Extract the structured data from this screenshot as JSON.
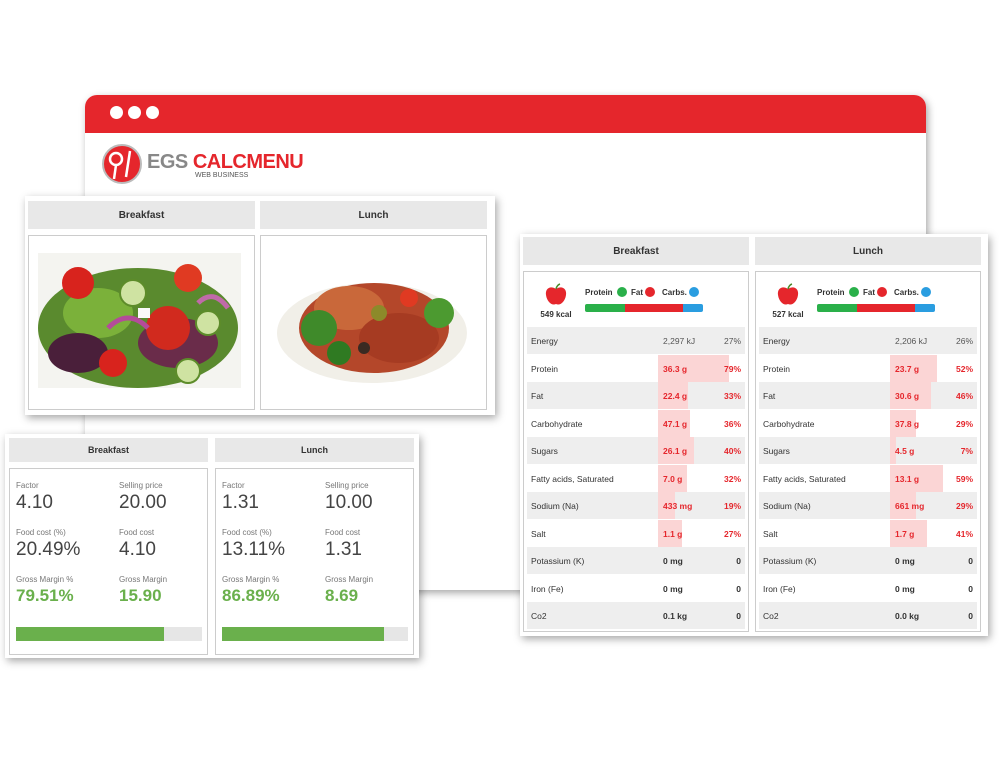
{
  "logo": {
    "brand_grey": "EGS",
    "brand_red": "CALCMENU",
    "tagline": "WEB BUSINESS"
  },
  "photos": [
    {
      "title": "Breakfast"
    },
    {
      "title": "Lunch"
    }
  ],
  "costs": [
    {
      "title": "Breakfast",
      "fields": [
        {
          "label": "Factor",
          "value": "4.10"
        },
        {
          "label": "Selling price",
          "value": "20.00"
        },
        {
          "label": "Food cost (%)",
          "value": "20.49%"
        },
        {
          "label": "Food cost",
          "value": "4.10"
        },
        {
          "label": "Gross Margin %",
          "value": "79.51%"
        },
        {
          "label": "Gross Margin",
          "value": "15.90"
        }
      ]
    },
    {
      "title": "Lunch",
      "fields": [
        {
          "label": "Factor",
          "value": "1.31"
        },
        {
          "label": "Selling price",
          "value": "10.00"
        },
        {
          "label": "Food cost (%)",
          "value": "13.11%"
        },
        {
          "label": "Food cost",
          "value": "1.31"
        },
        {
          "label": "Gross Margin %",
          "value": "86.89%"
        },
        {
          "label": "Gross Margin",
          "value": "8.69"
        }
      ]
    }
  ],
  "nutrition": [
    {
      "title": "Breakfast",
      "kcal": "549 kcal",
      "legend": [
        "Protein",
        "Fat",
        "Carbs."
      ],
      "rows": [
        {
          "name": "Energy",
          "value": "2,297 kJ",
          "pct": "27%"
        },
        {
          "name": "Protein",
          "value": "36.3 g",
          "pct": "79%",
          "highlight": true
        },
        {
          "name": "Fat",
          "value": "22.4 g",
          "pct": "33%",
          "highlight": true
        },
        {
          "name": "Carbohydrate",
          "value": "47.1 g",
          "pct": "36%",
          "highlight": true
        },
        {
          "name": "Sugars",
          "value": "26.1 g",
          "pct": "40%",
          "highlight": true
        },
        {
          "name": "Fatty acids, Saturated",
          "value": "7.0 g",
          "pct": "32%",
          "highlight": true
        },
        {
          "name": "Sodium (Na)",
          "value": "433 mg",
          "pct": "19%",
          "highlight": true
        },
        {
          "name": "Salt",
          "value": "1.1 g",
          "pct": "27%",
          "highlight": true
        },
        {
          "name": "Potassium (K)",
          "value": "0 mg",
          "pct": "0"
        },
        {
          "name": "Iron (Fe)",
          "value": "0 mg",
          "pct": "0"
        },
        {
          "name": "Co2",
          "value": "0.1 kg",
          "pct": "0"
        }
      ]
    },
    {
      "title": "Lunch",
      "kcal": "527 kcal",
      "legend": [
        "Protein",
        "Fat",
        "Carbs."
      ],
      "rows": [
        {
          "name": "Energy",
          "value": "2,206 kJ",
          "pct": "26%"
        },
        {
          "name": "Protein",
          "value": "23.7 g",
          "pct": "52%",
          "highlight": true
        },
        {
          "name": "Fat",
          "value": "30.6 g",
          "pct": "46%",
          "highlight": true
        },
        {
          "name": "Carbohydrate",
          "value": "37.8 g",
          "pct": "29%",
          "highlight": true
        },
        {
          "name": "Sugars",
          "value": "4.5 g",
          "pct": "7%",
          "highlight": true
        },
        {
          "name": "Fatty acids, Saturated",
          "value": "13.1 g",
          "pct": "59%",
          "highlight": true
        },
        {
          "name": "Sodium (Na)",
          "value": "661 mg",
          "pct": "29%",
          "highlight": true
        },
        {
          "name": "Salt",
          "value": "1.7 g",
          "pct": "41%",
          "highlight": true
        },
        {
          "name": "Potassium (K)",
          "value": "0 mg",
          "pct": "0"
        },
        {
          "name": "Iron (Fe)",
          "value": "0 mg",
          "pct": "0"
        },
        {
          "name": "Co2",
          "value": "0.0 kg",
          "pct": "0"
        }
      ]
    }
  ]
}
